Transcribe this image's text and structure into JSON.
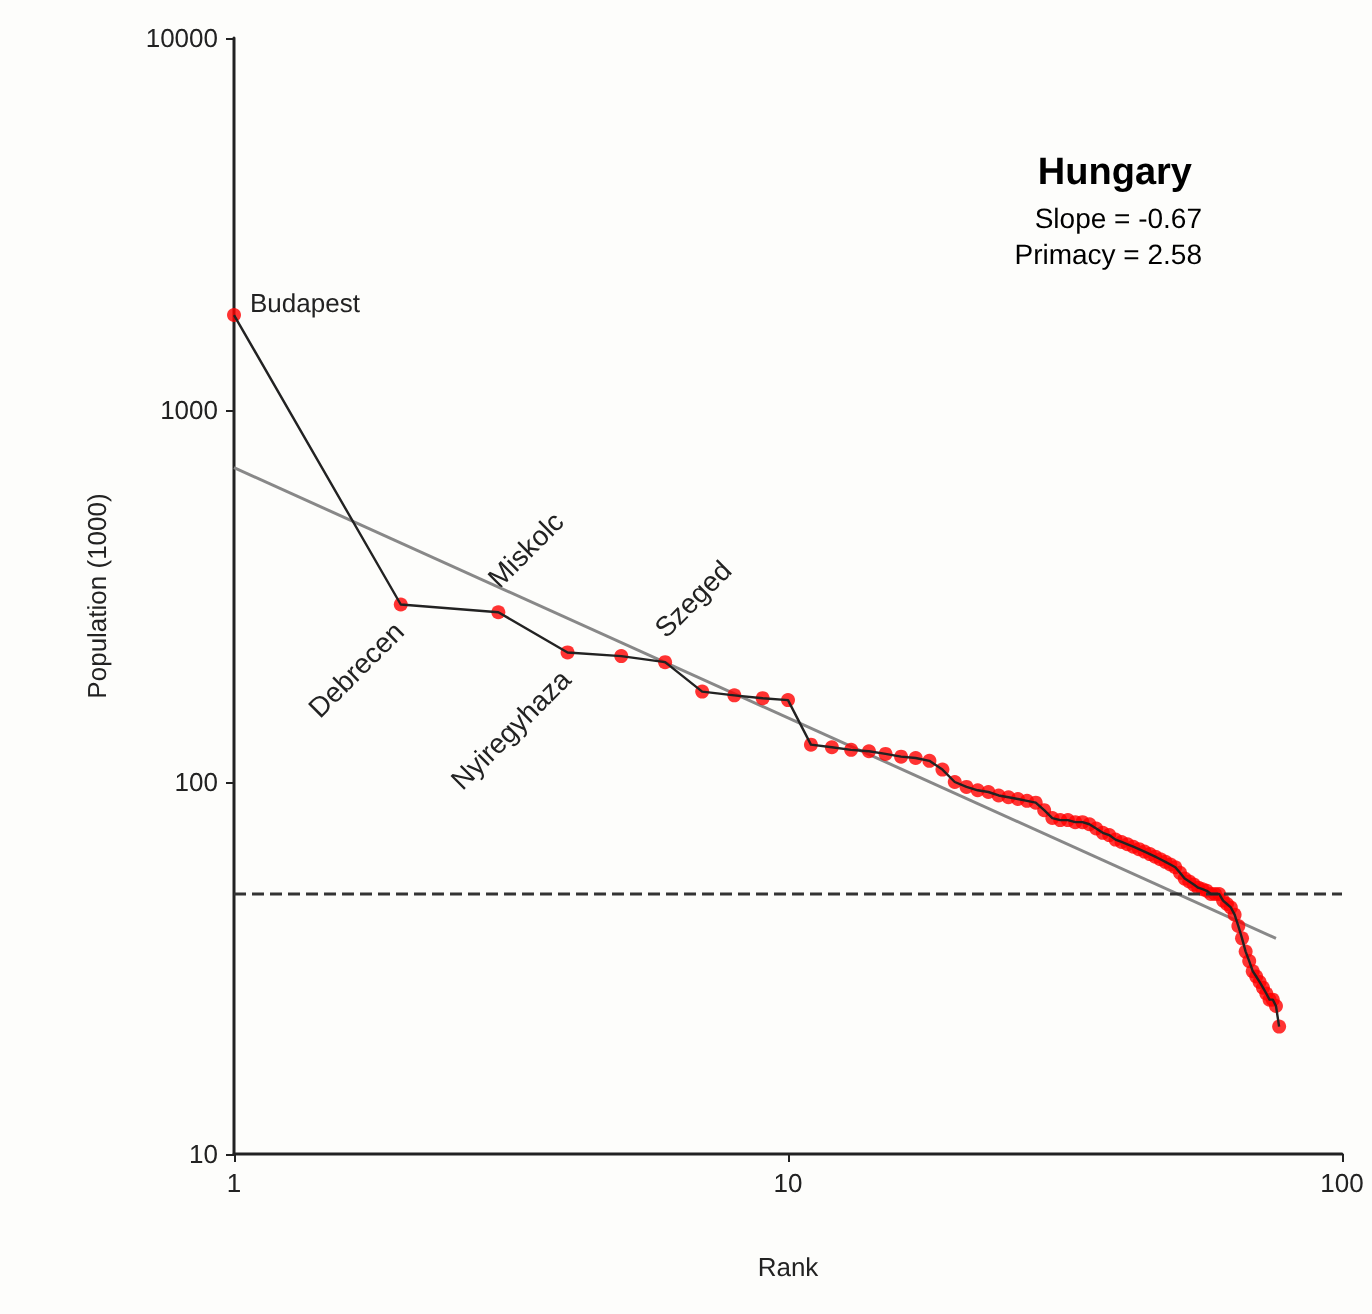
{
  "chart_data": {
    "type": "line",
    "title": "Hungary",
    "xlabel": "Rank",
    "ylabel": "Population (1000)",
    "log": "xy",
    "xlim": [
      1,
      100
    ],
    "ylim": [
      10,
      10000
    ],
    "xticks": [
      1,
      10,
      100
    ],
    "yticks": [
      10,
      100,
      1000,
      10000
    ],
    "grid": false,
    "marker": "circle",
    "x": [
      1,
      2,
      3,
      4,
      5,
      6,
      7,
      8,
      9,
      10,
      11,
      12,
      13,
      14,
      15,
      16,
      17,
      18,
      19,
      20,
      21,
      22,
      23,
      24,
      25,
      26,
      27,
      28,
      29,
      30,
      31,
      32,
      33,
      34,
      35,
      36,
      37,
      38,
      39,
      40,
      41,
      42,
      43,
      44,
      45,
      46,
      47,
      48,
      49,
      50,
      51,
      52,
      53,
      54,
      55,
      56,
      57,
      58,
      59,
      60,
      61,
      62,
      63,
      64,
      65,
      66,
      67,
      68,
      69,
      70,
      71,
      72,
      73,
      74,
      75,
      76,
      77
    ],
    "series": [
      {
        "color": "#ff0000",
        "values": [
          1800,
          300,
          286,
          223,
          218,
          210,
          175,
          171,
          168,
          166,
          126,
          124,
          122,
          121,
          119,
          117,
          116,
          114,
          108,
          100,
          97,
          95,
          94,
          92,
          91,
          90,
          89,
          88,
          84,
          80,
          79,
          79,
          78,
          78,
          77,
          75,
          73,
          72,
          70,
          69,
          68,
          67,
          66,
          65,
          64,
          63,
          62,
          61,
          60,
          59,
          57,
          55,
          54,
          53,
          52,
          51.5,
          51,
          50,
          50,
          50,
          48,
          47,
          46,
          44,
          41,
          38,
          35,
          33,
          31,
          30,
          29,
          28,
          27,
          26,
          26,
          25,
          22
        ]
      },
      {
        "type": "line",
        "color": "#888888",
        "marker": "none",
        "x": [
          1,
          76
        ],
        "values": [
          700,
          38
        ]
      }
    ],
    "ref_lines": [
      {
        "axis": "y",
        "value": 50,
        "line_style": "dashed",
        "color": "#333333"
      }
    ],
    "annotations": [
      {
        "text": "Budapest",
        "x": 1,
        "y": 1800
      },
      {
        "text": "Debrecen",
        "x": 2,
        "y": 300
      },
      {
        "text": "Miskolc",
        "x": 3,
        "y": 286
      },
      {
        "text": "Nyiregyhaza",
        "x": 4,
        "y": 223
      },
      {
        "text": "Szeged",
        "x": 6,
        "y": 210
      },
      "Slope = -0.67",
      "Primacy = 2.58"
    ]
  }
}
